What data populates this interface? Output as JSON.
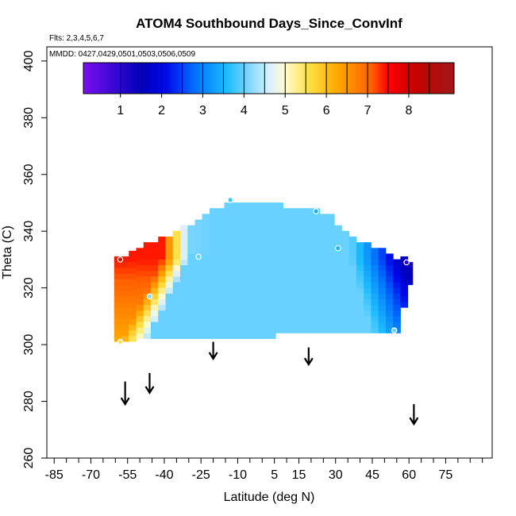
{
  "chart_data": {
    "type": "heatmap",
    "title": "ATOM4 Southbound Days_Since_ConvInf",
    "annotations": {
      "flights": "Flts: 2,3,4,5,6,7",
      "dates": "MMDD: 0427,0429,0501,0503,0506,0509"
    },
    "xlabel": "Latitude (deg N)",
    "ylabel": "Theta (C)",
    "xlim": [
      -88,
      94
    ],
    "ylim": [
      260,
      405
    ],
    "x_ticks": [
      -85,
      -70,
      -55,
      -40,
      -25,
      -10,
      5,
      15,
      30,
      45,
      60,
      75
    ],
    "x_minor_ticks": [
      -80,
      -75,
      -65,
      -60,
      -50,
      -45,
      -35,
      -30,
      -20,
      -15,
      -5,
      0,
      10,
      20,
      25,
      35,
      40,
      50,
      55,
      65,
      70,
      80,
      85,
      90
    ],
    "y_ticks": [
      260,
      280,
      300,
      320,
      340,
      360,
      380,
      400
    ],
    "colorbar": {
      "min": 0.1,
      "max": 9.1,
      "ticks": [
        1,
        2,
        3,
        4,
        5,
        6,
        7,
        8
      ],
      "colors": [
        "#7a10f0",
        "#0000b8",
        "#0008e8",
        "#0070ff",
        "#1ebdff",
        "#d8eeff",
        "#fffad0",
        "#ffe040",
        "#ffa500",
        "#ff6000",
        "#ff0000",
        "#c80000",
        "#a01818"
      ],
      "stops": [
        0.1,
        1.5,
        2.1,
        2.8,
        3.6,
        4.6,
        5.0,
        5.6,
        6.3,
        7.1,
        7.5,
        8.1,
        9.1
      ]
    },
    "field": {
      "description_in_data_units": "Gridded days-since-convective-influence field",
      "grid_dx": 3.0,
      "grid_dtheta": 2.0,
      "columns": [
        [
          -59,
          301,
          330
        ],
        [
          -56,
          301,
          331
        ],
        [
          -53,
          301,
          332
        ],
        [
          -50,
          302,
          334
        ],
        [
          -47,
          302,
          335
        ],
        [
          -44,
          302,
          336
        ],
        [
          -41,
          302,
          337
        ],
        [
          -38,
          302,
          338
        ],
        [
          -35,
          302,
          340
        ],
        [
          -32,
          302,
          341
        ],
        [
          -29,
          302,
          342
        ],
        [
          -26,
          302,
          344
        ],
        [
          -23,
          302,
          346
        ],
        [
          -20,
          302,
          347
        ],
        [
          -17,
          302,
          348
        ],
        [
          -14,
          302,
          349
        ],
        [
          -11,
          302,
          350
        ],
        [
          -8,
          302,
          350
        ],
        [
          -5,
          302,
          350
        ],
        [
          -2,
          302,
          350
        ],
        [
          1,
          302,
          350
        ],
        [
          4,
          302,
          350
        ],
        [
          7,
          304,
          349
        ],
        [
          10,
          304,
          348
        ],
        [
          13,
          304,
          348
        ],
        [
          16,
          304,
          348
        ],
        [
          19,
          304,
          348
        ],
        [
          22,
          304,
          348
        ],
        [
          25,
          304,
          346
        ],
        [
          28,
          304,
          345
        ],
        [
          31,
          304,
          342
        ],
        [
          34,
          304,
          340
        ],
        [
          37,
          304,
          338
        ],
        [
          40,
          304,
          336
        ],
        [
          43,
          304,
          335
        ],
        [
          46,
          304,
          334
        ],
        [
          49,
          304,
          333
        ],
        [
          52,
          304,
          332
        ],
        [
          55,
          304,
          330
        ],
        [
          58,
          313,
          330
        ],
        [
          60,
          321,
          328
        ]
      ]
    },
    "flight_points": [
      {
        "lat": -58,
        "theta": 330,
        "value": 7.5
      },
      {
        "lat": -58,
        "theta": 301,
        "value": 5.5
      },
      {
        "lat": -46,
        "theta": 317,
        "value": 4.2
      },
      {
        "lat": -26,
        "theta": 331,
        "value": 4.0
      },
      {
        "lat": -13,
        "theta": 351,
        "value": 3.8
      },
      {
        "lat": 22,
        "theta": 347,
        "value": 3.4
      },
      {
        "lat": 31,
        "theta": 334,
        "value": 3.5
      },
      {
        "lat": 54,
        "theta": 305,
        "value": 4.0
      },
      {
        "lat": 59,
        "theta": 329,
        "value": 1.0
      }
    ],
    "arrows": [
      {
        "lat": -56,
        "theta_top": 287,
        "theta_bottom": 279
      },
      {
        "lat": -46,
        "theta_top": 290,
        "theta_bottom": 283
      },
      {
        "lat": -20,
        "theta_top": 301,
        "theta_bottom": 295
      },
      {
        "lat": 19,
        "theta_top": 299,
        "theta_bottom": 293
      },
      {
        "lat": 62,
        "theta_top": 279,
        "theta_bottom": 272
      }
    ],
    "grid": false,
    "legend": "colorbar top-inside"
  }
}
